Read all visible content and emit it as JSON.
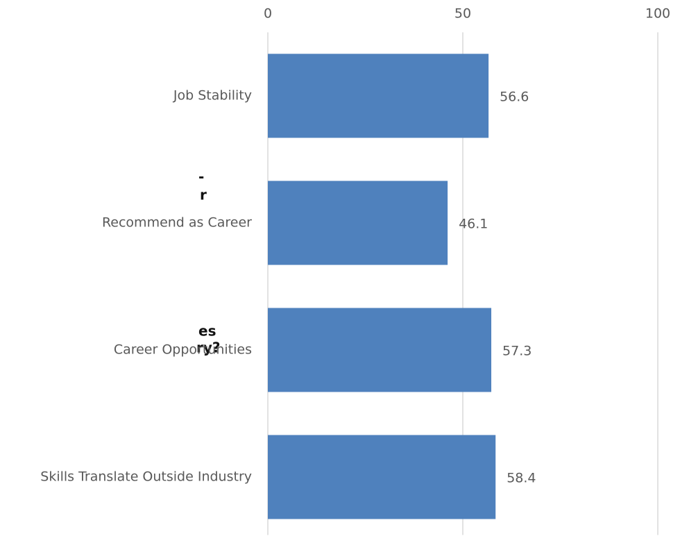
{
  "chart_data": {
    "type": "hbar",
    "categories": [
      "Job Stability",
      "Recommend as Career",
      "Career Opportunities",
      "Skills Translate Outside Industry"
    ],
    "values": [
      56.6,
      46.1,
      57.3,
      58.4
    ],
    "color": "#4f81bd",
    "xlim": [
      0,
      100
    ],
    "xticks": [
      0,
      50,
      100
    ],
    "grid": true,
    "annotations": [
      "-",
      "r",
      "es",
      "ry?"
    ]
  }
}
